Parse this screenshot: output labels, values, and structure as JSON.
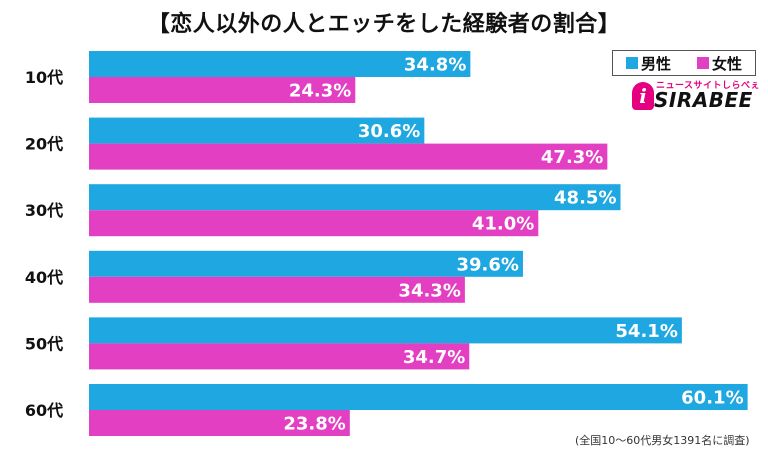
{
  "chart_data": {
    "type": "bar",
    "orientation": "horizontal",
    "title": "【恋人以外の人とエッチをした経験者の割合】",
    "categories": [
      "10代",
      "20代",
      "30代",
      "40代",
      "50代",
      "60代"
    ],
    "series": [
      {
        "name": "男性",
        "color": "#1ea7e0",
        "values": [
          34.8,
          30.6,
          48.5,
          39.6,
          54.1,
          60.1
        ],
        "labels": [
          "34.8%",
          "30.6%",
          "48.5%",
          "39.6%",
          "54.1%",
          "60.1%"
        ]
      },
      {
        "name": "女性",
        "color": "#e23fc3",
        "values": [
          24.3,
          47.3,
          41.0,
          34.3,
          34.7,
          23.8
        ],
        "labels": [
          "24.3%",
          "47.3%",
          "41.0%",
          "34.3%",
          "34.7%",
          "23.8%"
        ]
      }
    ],
    "xlim": [
      0,
      60.5
    ],
    "legend_position": "top-right",
    "footnote": "(全国10〜60代男女1391名に調査)"
  },
  "logo": {
    "tagline": "ニュースサイトしらべぇ",
    "badge": "i",
    "word": "SIRABEE"
  }
}
